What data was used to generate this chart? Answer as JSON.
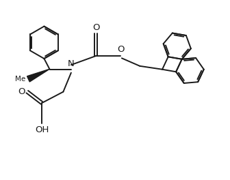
{
  "bg_color": "#ffffff",
  "line_color": "#1a1a1a",
  "line_width": 1.4,
  "font_size": 8.5,
  "figsize": [
    3.36,
    2.64
  ],
  "dpi": 100,
  "xlim": [
    0,
    10
  ],
  "ylim": [
    0,
    7.86
  ]
}
